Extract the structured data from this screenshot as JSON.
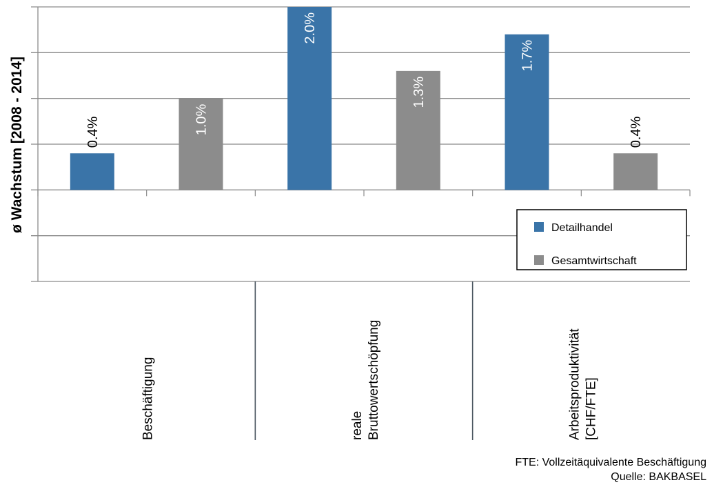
{
  "chart_data": {
    "type": "bar",
    "ylabel": "ø Wachstum [2008 - 2014]",
    "ylim": [
      -1.0,
      2.0
    ],
    "grid": true,
    "legend_placement": "bottom-right",
    "categories": [
      [
        "Beschäftigung"
      ],
      [
        "reale",
        "Bruttowertschöpfung"
      ],
      [
        "Arbeitsproduktivität",
        "[CHF/FTE]"
      ]
    ],
    "series": [
      {
        "name": "Detailhandel",
        "color": "#3a74a8",
        "values": [
          0.4,
          2.0,
          1.7
        ],
        "labels": [
          "0.4%",
          "2.0%",
          "1.7%"
        ]
      },
      {
        "name": "Gesamtwirtschaft",
        "color": "#8c8c8c",
        "values": [
          1.0,
          1.3,
          0.4
        ],
        "labels": [
          "1.0%",
          "1.3%",
          "0.4%"
        ]
      }
    ]
  },
  "footnotes": {
    "fte": "FTE: Vollzeitäquivalente Beschäftigung",
    "source": "Quelle: BAKBASEL"
  }
}
